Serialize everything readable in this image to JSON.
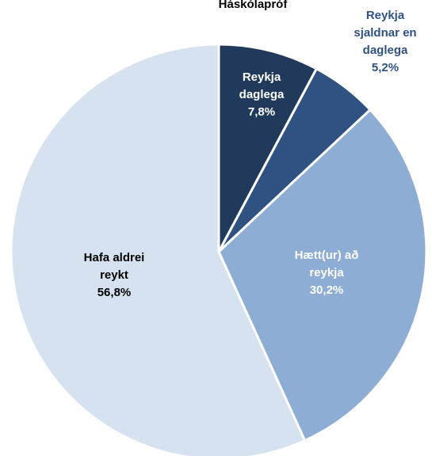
{
  "chart_data": {
    "type": "pie",
    "title": "Háskólapróf",
    "slices": [
      {
        "name": "Reykja daglega",
        "label_lines": [
          "Reykja",
          "daglega"
        ],
        "value": 7.8,
        "value_text": "7,8%",
        "color": "#213a5c",
        "label_color": "#ffffff",
        "label_placement": "inside"
      },
      {
        "name": "Reykja sjaldnar en daglega",
        "label_lines": [
          "Reykja",
          "sjaldnar en",
          "daglega"
        ],
        "value": 5.2,
        "value_text": "5,2%",
        "color": "#2f5283",
        "label_color": "#2f5283",
        "label_placement": "outside"
      },
      {
        "name": "Hætt(ur) að reykja",
        "label_lines": [
          "Hætt(ur) að",
          "reykja"
        ],
        "value": 30.2,
        "value_text": "30,2%",
        "color": "#8eadd4",
        "label_color": "#ffffff",
        "label_placement": "inside"
      },
      {
        "name": "Hafa aldrei reykt",
        "label_lines": [
          "Hafa aldrei",
          "reykt"
        ],
        "value": 56.8,
        "value_text": "56,8%",
        "color": "#d6e2ef",
        "label_color": "#000000",
        "label_placement": "inside"
      }
    ],
    "start_angle_deg": 0,
    "direction": "clockwise",
    "slice_separator_color": "#ffffff",
    "legend": "none"
  }
}
